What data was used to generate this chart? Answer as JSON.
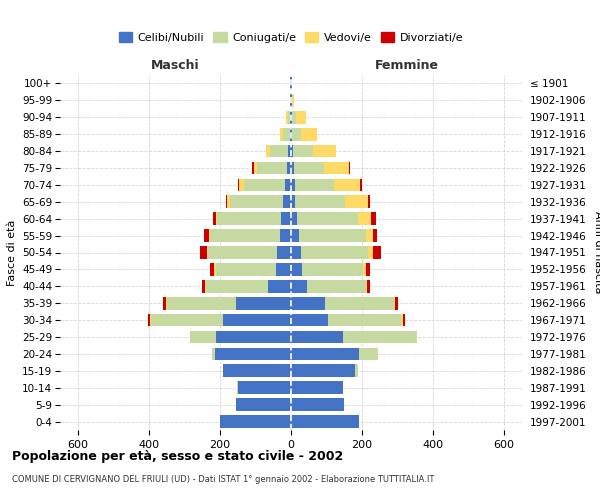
{
  "age_groups": [
    "100+",
    "95-99",
    "90-94",
    "85-89",
    "80-84",
    "75-79",
    "70-74",
    "65-69",
    "60-64",
    "55-59",
    "50-54",
    "45-49",
    "40-44",
    "35-39",
    "30-34",
    "25-29",
    "20-24",
    "15-19",
    "10-14",
    "5-9",
    "0-4"
  ],
  "birth_years": [
    "≤ 1901",
    "1902-1906",
    "1907-1911",
    "1912-1916",
    "1917-1921",
    "1922-1926",
    "1927-1931",
    "1932-1936",
    "1937-1941",
    "1942-1946",
    "1947-1951",
    "1952-1956",
    "1957-1961",
    "1962-1966",
    "1967-1971",
    "1972-1976",
    "1977-1981",
    "1982-1986",
    "1987-1991",
    "1992-1996",
    "1997-2001"
  ],
  "males": {
    "celibi": [
      2,
      2,
      3,
      4,
      8,
      12,
      18,
      22,
      28,
      32,
      38,
      42,
      65,
      155,
      190,
      210,
      215,
      190,
      150,
      155,
      200
    ],
    "coniugati": [
      0,
      2,
      6,
      18,
      50,
      85,
      115,
      150,
      180,
      195,
      195,
      170,
      175,
      195,
      205,
      75,
      8,
      2,
      1,
      0,
      0
    ],
    "vedovi": [
      0,
      0,
      4,
      8,
      12,
      8,
      12,
      8,
      4,
      4,
      4,
      4,
      2,
      2,
      2,
      0,
      0,
      0,
      0,
      0,
      0
    ],
    "divorziati": [
      0,
      0,
      0,
      0,
      0,
      4,
      4,
      4,
      8,
      13,
      18,
      12,
      8,
      9,
      4,
      0,
      0,
      0,
      0,
      0,
      0
    ]
  },
  "females": {
    "nubili": [
      2,
      2,
      2,
      4,
      6,
      8,
      10,
      12,
      18,
      22,
      28,
      32,
      45,
      95,
      105,
      145,
      190,
      180,
      145,
      150,
      190
    ],
    "coniugate": [
      0,
      2,
      12,
      25,
      55,
      85,
      110,
      140,
      170,
      190,
      190,
      170,
      165,
      195,
      205,
      210,
      55,
      8,
      1,
      0,
      0
    ],
    "vedove": [
      2,
      4,
      28,
      45,
      65,
      70,
      75,
      65,
      38,
      18,
      12,
      8,
      4,
      4,
      4,
      0,
      0,
      0,
      0,
      0,
      0
    ],
    "divorziate": [
      0,
      0,
      0,
      0,
      2,
      2,
      4,
      4,
      12,
      13,
      22,
      13,
      8,
      8,
      8,
      0,
      0,
      0,
      0,
      0,
      0
    ]
  },
  "color_celibi": "#4472c4",
  "color_coniugati": "#c5d9a0",
  "color_vedovi": "#ffd966",
  "color_divorziati": "#cc0000",
  "xlim": 650,
  "title": "Popolazione per età, sesso e stato civile - 2002",
  "subtitle": "COMUNE DI CERVIGNANO DEL FRIULI (UD) - Dati ISTAT 1° gennaio 2002 - Elaborazione TUTTITALIA.IT",
  "ylabel_left": "Fasce di età",
  "ylabel_right": "Anni di nascita",
  "label_maschi": "Maschi",
  "label_femmine": "Femmine",
  "legend_labels": [
    "Celibi/Nubili",
    "Coniugati/e",
    "Vedovi/e",
    "Divorziati/e"
  ],
  "bg_color": "#ffffff",
  "plot_bg": "#ffffff",
  "grid_color": "#cccccc"
}
